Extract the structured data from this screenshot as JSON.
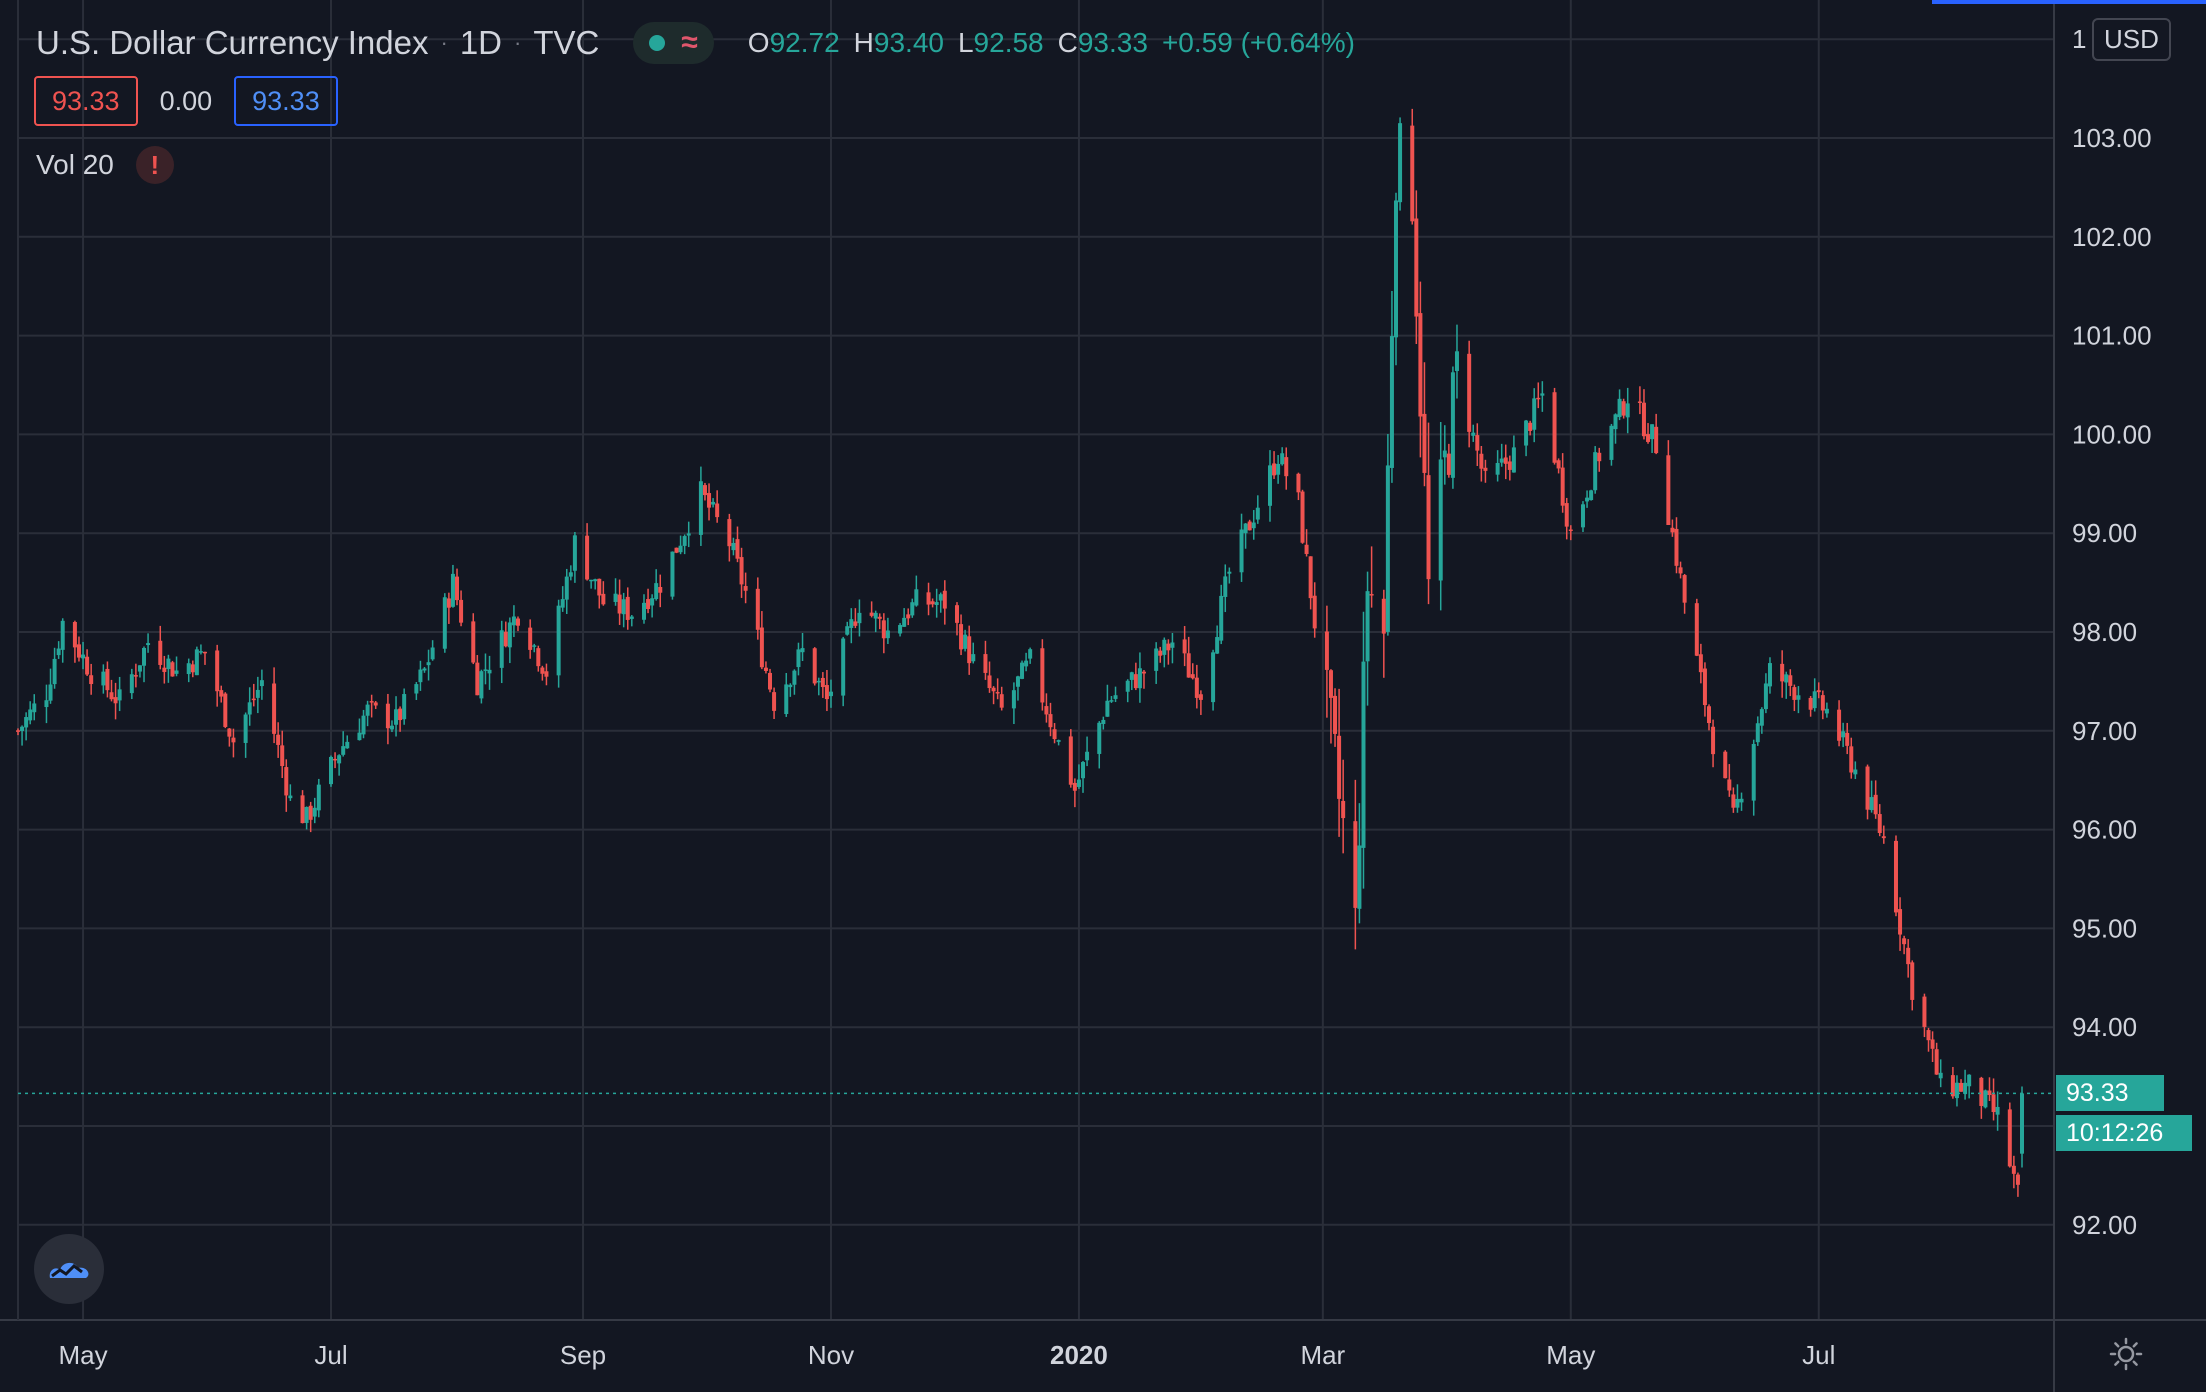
{
  "header": {
    "symbol_name": "U.S. Dollar Currency Index",
    "interval": "1D",
    "exchange": "TVC",
    "ohlc": {
      "o_label": "O",
      "o_value": "92.72",
      "h_label": "H",
      "h_value": "93.40",
      "l_label": "L",
      "l_value": "92.58",
      "c_label": "C",
      "c_value": "93.33",
      "change": "+0.59 (+0.64%)"
    }
  },
  "quote": {
    "bid": "93.33",
    "spread": "0.00",
    "ask": "93.33"
  },
  "indicator": {
    "label": "Vol 20",
    "warning_glyph": "!"
  },
  "scale": {
    "currency_button": "USD",
    "top_clipped_label": "1"
  },
  "last_price": {
    "value": "93.33",
    "countdown": "10:12:26"
  },
  "colors": {
    "up": "#26a69a",
    "down": "#ef5350",
    "background": "#131722",
    "grid": "#2a2e39",
    "accent": "#2962ff"
  },
  "icons": {
    "logo": "tradingview-cloud-icon",
    "settings": "gear-icon",
    "status": "market-open-dot-icon",
    "wave": "delayed-data-wave-icon"
  },
  "chart_data": {
    "type": "candlestick",
    "title": "U.S. Dollar Currency Index",
    "ylim": [
      91.0,
      103.0
    ],
    "ytick_labels": [
      "92.00",
      "93.00",
      "94.00",
      "95.00",
      "96.00",
      "97.00",
      "98.00",
      "99.00",
      "100.00",
      "101.00",
      "102.00",
      "103.00"
    ],
    "xtick_labels": [
      "May",
      "Jul",
      "Sep",
      "Nov",
      "2020",
      "Mar",
      "May",
      "Jul"
    ],
    "grid": true,
    "last_price": 93.33,
    "close_path": [
      [
        "2019-04-15",
        97.0
      ],
      [
        "2019-04-22",
        97.4
      ],
      [
        "2019-04-26",
        98.1
      ],
      [
        "2019-05-03",
        97.6
      ],
      [
        "2019-05-10",
        97.3
      ],
      [
        "2019-05-17",
        97.9
      ],
      [
        "2019-05-24",
        97.6
      ],
      [
        "2019-05-31",
        97.8
      ],
      [
        "2019-06-07",
        96.9
      ],
      [
        "2019-06-14",
        97.5
      ],
      [
        "2019-06-21",
        96.3
      ],
      [
        "2019-06-25",
        96.1
      ],
      [
        "2019-07-03",
        96.8
      ],
      [
        "2019-07-10",
        97.2
      ],
      [
        "2019-07-17",
        97.1
      ],
      [
        "2019-07-24",
        97.6
      ],
      [
        "2019-07-31",
        98.5
      ],
      [
        "2019-08-06",
        97.5
      ],
      [
        "2019-08-16",
        98.2
      ],
      [
        "2019-08-23",
        97.6
      ],
      [
        "2019-08-30",
        98.9
      ],
      [
        "2019-09-06",
        98.3
      ],
      [
        "2019-09-13",
        98.2
      ],
      [
        "2019-09-20",
        98.5
      ],
      [
        "2019-09-30",
        99.4
      ],
      [
        "2019-10-07",
        98.9
      ],
      [
        "2019-10-11",
        98.4
      ],
      [
        "2019-10-18",
        97.3
      ],
      [
        "2019-10-25",
        97.8
      ],
      [
        "2019-10-31",
        97.3
      ],
      [
        "2019-11-08",
        98.3
      ],
      [
        "2019-11-15",
        98.0
      ],
      [
        "2019-11-22",
        98.3
      ],
      [
        "2019-11-29",
        98.3
      ],
      [
        "2019-12-06",
        97.7
      ],
      [
        "2019-12-13",
        97.2
      ],
      [
        "2019-12-20",
        97.7
      ],
      [
        "2019-12-31",
        96.4
      ],
      [
        "2020-01-08",
        97.3
      ],
      [
        "2020-01-17",
        97.6
      ],
      [
        "2020-01-24",
        97.9
      ],
      [
        "2020-01-31",
        97.4
      ],
      [
        "2020-02-07",
        98.6
      ],
      [
        "2020-02-19",
        99.8
      ],
      [
        "2020-02-24",
        99.3
      ],
      [
        "2020-02-28",
        98.1
      ],
      [
        "2020-03-06",
        96.0
      ],
      [
        "2020-03-09",
        95.0
      ],
      [
        "2020-03-12",
        98.5
      ],
      [
        "2020-03-16",
        98.0
      ],
      [
        "2020-03-19",
        102.8
      ],
      [
        "2020-03-23",
        102.5
      ],
      [
        "2020-03-27",
        98.4
      ],
      [
        "2020-04-03",
        100.6
      ],
      [
        "2020-04-10",
        99.5
      ],
      [
        "2020-04-17",
        99.8
      ],
      [
        "2020-04-24",
        100.4
      ],
      [
        "2020-05-01",
        99.0
      ],
      [
        "2020-05-08",
        99.8
      ],
      [
        "2020-05-15",
        100.4
      ],
      [
        "2020-05-22",
        99.9
      ],
      [
        "2020-05-29",
        98.3
      ],
      [
        "2020-06-05",
        96.9
      ],
      [
        "2020-06-10",
        96.1
      ],
      [
        "2020-06-19",
        97.6
      ],
      [
        "2020-06-26",
        97.4
      ],
      [
        "2020-07-03",
        97.2
      ],
      [
        "2020-07-10",
        96.6
      ],
      [
        "2020-07-17",
        95.9
      ],
      [
        "2020-07-24",
        94.4
      ],
      [
        "2020-07-31",
        93.4
      ],
      [
        "2020-08-07",
        93.4
      ],
      [
        "2020-08-14",
        93.1
      ],
      [
        "2020-08-19",
        92.3
      ],
      [
        "2020-08-20",
        93.33
      ]
    ]
  }
}
